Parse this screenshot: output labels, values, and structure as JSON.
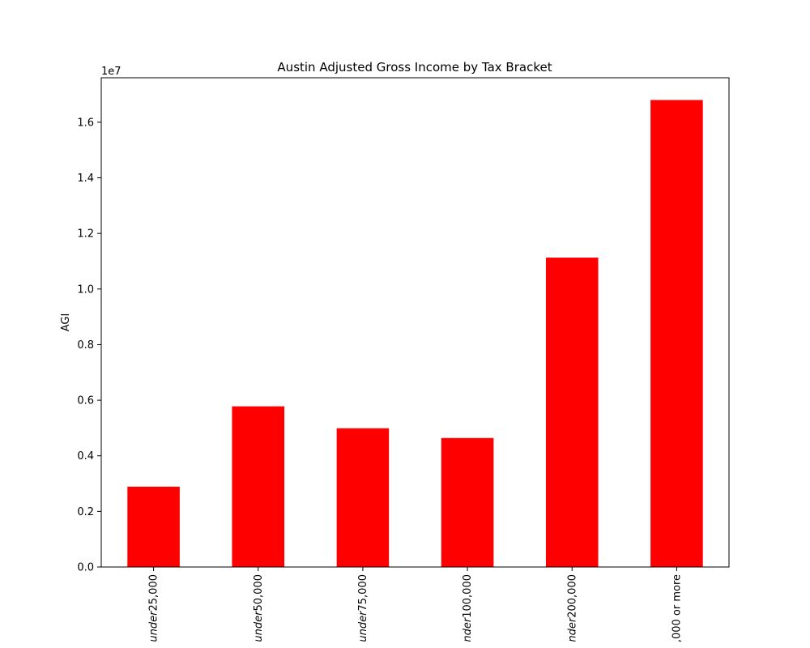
{
  "chart_data": {
    "type": "bar",
    "title": "Austin Adjusted Gross Income by Tax Bracket",
    "xlabel": "",
    "ylabel": "AGI",
    "offset_label": "1e7",
    "categories": [
      "under25,000",
      "under50,000",
      "under75,000",
      "nder100,000",
      "nder200,000",
      ",000 or more"
    ],
    "values": [
      2890000,
      5780000,
      4990000,
      4640000,
      11130000,
      16800000
    ],
    "ylim": [
      0,
      17600000
    ],
    "yticks": [
      0,
      2000000,
      4000000,
      6000000,
      8000000,
      10000000,
      12000000,
      14000000,
      16000000
    ],
    "ytick_labels": [
      "0.0",
      "0.2",
      "0.4",
      "0.6",
      "0.8",
      "1.0",
      "1.2",
      "1.4",
      "1.6"
    ],
    "bar_color": "#ff0000",
    "grid": false
  }
}
